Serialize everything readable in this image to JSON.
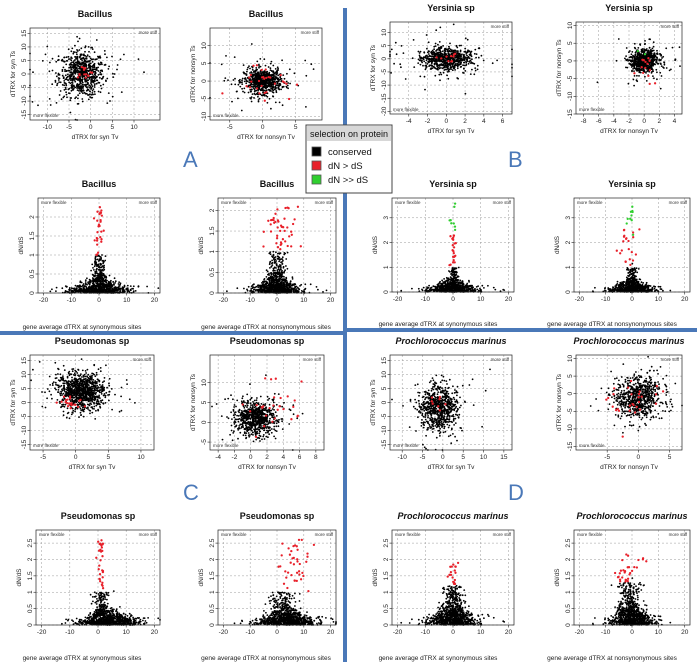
{
  "figure": {
    "quadrant_letters": [
      "A",
      "B",
      "C",
      "D"
    ],
    "legend": {
      "title": "selection on protein",
      "items": [
        {
          "label": "conserved",
          "color": "#000000"
        },
        {
          "label": "dN > dS",
          "color": "#e8202a"
        },
        {
          "label": "dN >> dS",
          "color": "#2fcf2f"
        }
      ]
    },
    "colors": {
      "divider": "#4a78b8",
      "conserved": "#000000",
      "dn_gt_ds": "#e8202a",
      "dn_gg_ds": "#2fcf2f",
      "grid": "#9a9a9a"
    }
  },
  "chart_data": [
    {
      "id": "A1",
      "type": "scatter",
      "title": "Bacillus",
      "italic": false,
      "xlabel": "dTRX for syn Tv",
      "ylabel": "dTRX for syn Ts",
      "xlim": [
        -14,
        16
      ],
      "ylim": [
        -17,
        17
      ],
      "xticks": [
        -10,
        -5,
        0,
        5,
        10
      ],
      "yticks": [
        -15,
        -10,
        -5,
        0,
        5,
        10,
        15
      ],
      "corner_top": "more stiff",
      "corner_bottom": "more flexible",
      "clouds": [
        {
          "cx": -2,
          "cy": 0,
          "sx": 2.6,
          "sy": 4.2,
          "n": 650
        },
        {
          "cx": -2,
          "cy": 0,
          "sx": 6,
          "sy": 7,
          "n": 70
        }
      ],
      "red_spots": [
        {
          "cx": -1.5,
          "cy": 1,
          "sx": 1,
          "sy": 1.2,
          "n": 14
        }
      ],
      "green_spots": []
    },
    {
      "id": "A2",
      "type": "scatter",
      "title": "Bacillus",
      "italic": false,
      "xlabel": "dTRX for nonsyn Tv",
      "ylabel": "dTRX for nonsyn Ts",
      "xlim": [
        -8,
        9
      ],
      "ylim": [
        -11,
        15
      ],
      "xticks": [
        -5,
        0,
        5
      ],
      "yticks": [
        -10,
        -5,
        0,
        5,
        10
      ],
      "corner_top": "more stiff",
      "corner_bottom": "more flexible",
      "clouds": [
        {
          "cx": 0,
          "cy": 0,
          "sx": 1.4,
          "sy": 1.7,
          "n": 650
        },
        {
          "cx": 0,
          "cy": 0,
          "sx": 3.5,
          "sy": 4,
          "n": 70
        }
      ],
      "red_spots": [
        {
          "cx": 0,
          "cy": 0.5,
          "sx": 2.4,
          "sy": 2.6,
          "n": 30
        }
      ],
      "green_spots": []
    },
    {
      "id": "A3",
      "type": "scatter",
      "title": "Bacillus",
      "italic": false,
      "xlabel": "",
      "ylabel": "dN/dS",
      "xlim": [
        -22,
        22
      ],
      "ylim": [
        0,
        2.5
      ],
      "xticks": [
        -20,
        -10,
        0,
        10,
        20
      ],
      "yticks": [
        0,
        0.5,
        1,
        1.5,
        2
      ],
      "corner_left": "more flexible",
      "corner_right": "more stiff",
      "base": {
        "n": 700,
        "sx": 5,
        "decay": 0.1
      },
      "core": {
        "n": 180,
        "cx": 0,
        "sx": 1.1,
        "ymin": 0.3,
        "ymax": 1.0
      },
      "red": {
        "n": 30,
        "cx": 0,
        "sx": 0.7,
        "ymin": 1.0,
        "ymax": 2.35
      },
      "green": {
        "n": 0
      }
    },
    {
      "id": "A4",
      "type": "scatter",
      "title": "Bacillus",
      "italic": false,
      "xlabel": "",
      "ylabel": "dN/dS",
      "xlim": [
        -22,
        22
      ],
      "ylim": [
        0,
        2.3
      ],
      "xticks": [
        -20,
        -10,
        0,
        10,
        20
      ],
      "yticks": [
        0,
        0.5,
        1,
        1.5,
        2
      ],
      "corner_left": "more flexible",
      "corner_right": "more stiff",
      "base": {
        "n": 700,
        "sx": 4,
        "decay": 0.1
      },
      "core": {
        "n": 180,
        "cx": 0,
        "sx": 1.6,
        "ymin": 0.3,
        "ymax": 1.0
      },
      "red": {
        "n": 45,
        "cx": 2,
        "sx": 3,
        "ymin": 1.0,
        "ymax": 2.1
      },
      "green": {
        "n": 0
      }
    },
    {
      "id": "B1",
      "type": "scatter",
      "title": "Yersinia sp",
      "italic": false,
      "xlabel": "dTRX for syn Tv",
      "ylabel": "dTRX for syn Ts",
      "xlim": [
        -6,
        7
      ],
      "ylim": [
        -21,
        14
      ],
      "xticks": [
        -4,
        -2,
        0,
        2,
        4,
        6
      ],
      "yticks": [
        -20,
        -15,
        -10,
        -5,
        0,
        5,
        10
      ],
      "corner_top": "more stiff",
      "corner_bottom": "more flexible",
      "clouds": [
        {
          "cx": 0,
          "cy": 0,
          "sx": 1.4,
          "sy": 2,
          "n": 650
        },
        {
          "cx": 0,
          "cy": 0,
          "sx": 3,
          "sy": 5,
          "n": 70
        }
      ],
      "red_spots": [
        {
          "cx": 0,
          "cy": 0.5,
          "sx": 0.8,
          "sy": 1,
          "n": 10
        }
      ],
      "green_spots": []
    },
    {
      "id": "B2",
      "type": "scatter",
      "title": "Yersinia sp",
      "italic": false,
      "xlabel": "dTRX for nonsyn Tv",
      "ylabel": "dTRX for nonsyn Ts",
      "xlim": [
        -9,
        5
      ],
      "ylim": [
        -15,
        11
      ],
      "xticks": [
        -8,
        -6,
        -4,
        -2,
        0,
        2,
        4
      ],
      "yticks": [
        -15,
        -10,
        -5,
        0,
        5,
        10
      ],
      "corner_top": "more stiff",
      "corner_bottom": "more flexible",
      "clouds": [
        {
          "cx": 0,
          "cy": 0,
          "sx": 0.9,
          "sy": 1.6,
          "n": 650
        },
        {
          "cx": 0,
          "cy": 0,
          "sx": 2,
          "sy": 3.5,
          "n": 70
        }
      ],
      "red_spots": [
        {
          "cx": 0,
          "cy": -1,
          "sx": 0.8,
          "sy": 2.2,
          "n": 14
        }
      ],
      "green_spots": [
        {
          "cx": -0.5,
          "cy": 3,
          "sx": 0.6,
          "sy": 0.8,
          "n": 2
        }
      ]
    },
    {
      "id": "B3",
      "type": "scatter",
      "title": "Yersinia sp",
      "italic": false,
      "xlabel": "",
      "ylabel": "dN/dS",
      "xlim": [
        -22,
        22
      ],
      "ylim": [
        0,
        3.8
      ],
      "xticks": [
        -20,
        -10,
        0,
        10,
        20
      ],
      "yticks": [
        0,
        1,
        2,
        3
      ],
      "corner_left": "more flexible",
      "corner_right": "more stiff",
      "base": {
        "n": 650,
        "sx": 4,
        "decay": 0.12
      },
      "core": {
        "n": 120,
        "cx": 0,
        "sx": 0.9,
        "ymin": 0.3,
        "ymax": 1.0
      },
      "red": {
        "n": 22,
        "cx": 0,
        "sx": 0.6,
        "ymin": 1.0,
        "ymax": 2.3
      },
      "green": {
        "n": 8,
        "cx": 0,
        "sx": 0.6,
        "ymin": 2.3,
        "ymax": 3.6
      }
    },
    {
      "id": "B4",
      "type": "scatter",
      "title": "Yersinia sp",
      "italic": false,
      "xlabel": "",
      "ylabel": "dN/dS",
      "xlim": [
        -22,
        22
      ],
      "ylim": [
        0,
        3.8
      ],
      "xticks": [
        -20,
        -10,
        0,
        10,
        20
      ],
      "yticks": [
        0,
        1,
        2,
        3
      ],
      "corner_left": "more flexible",
      "corner_right": "more stiff",
      "base": {
        "n": 650,
        "sx": 3.5,
        "decay": 0.12
      },
      "core": {
        "n": 120,
        "cx": 0,
        "sx": 1.2,
        "ymin": 0.3,
        "ymax": 1.0
      },
      "red": {
        "n": 22,
        "cx": -1,
        "sx": 2.2,
        "ymin": 1.0,
        "ymax": 2.6
      },
      "green": {
        "n": 10,
        "cx": 0,
        "sx": 1.3,
        "ymin": 2.3,
        "ymax": 3.5
      }
    },
    {
      "id": "C1",
      "type": "scatter",
      "title": "Pseudomonas sp",
      "italic": false,
      "xlabel": "dTRX for syn Tv",
      "ylabel": "dTRX for syn Ts",
      "xlim": [
        -7,
        12
      ],
      "ylim": [
        -17,
        17
      ],
      "xticks": [
        -5,
        0,
        5,
        10
      ],
      "yticks": [
        -15,
        -10,
        -5,
        0,
        5,
        10,
        15
      ],
      "corner_top": "more stiff",
      "corner_bottom": "more flexible",
      "clouds": [
        {
          "cx": 1,
          "cy": 4,
          "sx": 1.8,
          "sy": 3.2,
          "n": 900
        },
        {
          "cx": 1,
          "cy": 3,
          "sx": 3.5,
          "sy": 5.5,
          "n": 60
        }
      ],
      "red_spots": [
        {
          "cx": -1,
          "cy": 0,
          "sx": 0.9,
          "sy": 1.2,
          "n": 22
        }
      ],
      "green_spots": []
    },
    {
      "id": "C2",
      "type": "scatter",
      "title": "Pseudomonas sp",
      "italic": false,
      "xlabel": "dTRX for nonsyn Tv",
      "ylabel": "dTRX for nonsyn Ts",
      "xlim": [
        -5,
        9
      ],
      "ylim": [
        -7,
        17
      ],
      "xticks": [
        -4,
        -2,
        0,
        2,
        4,
        6,
        8
      ],
      "yticks": [
        -5,
        0,
        5,
        10
      ],
      "corner_top": "more stiff",
      "corner_bottom": "more flexible",
      "clouds": [
        {
          "cx": 0.5,
          "cy": 1,
          "sx": 1.2,
          "sy": 2,
          "n": 700
        },
        {
          "cx": 1,
          "cy": 2,
          "sx": 2.5,
          "sy": 4,
          "n": 70
        }
      ],
      "red_spots": [
        {
          "cx": 3,
          "cy": 5,
          "sx": 1.8,
          "sy": 3.5,
          "n": 28
        }
      ],
      "green_spots": []
    },
    {
      "id": "C3",
      "type": "scatter",
      "title": "Pseudomonas sp",
      "italic": false,
      "xlabel": "",
      "ylabel": "dN/dS",
      "xlim": [
        -22,
        22
      ],
      "ylim": [
        0,
        2.9
      ],
      "xticks": [
        -20,
        -10,
        0,
        10,
        20
      ],
      "yticks": [
        0,
        0.5,
        1,
        1.5,
        2,
        2.5
      ],
      "corner_left": "more flexible",
      "corner_right": "more stiff",
      "base": {
        "n": 800,
        "sx": 5,
        "decay": 0.12,
        "shift": 4
      },
      "core": {
        "n": 180,
        "cx": 1,
        "sx": 1.3,
        "ymin": 0.3,
        "ymax": 1.0
      },
      "red": {
        "n": 30,
        "cx": 1,
        "sx": 0.7,
        "ymin": 1.1,
        "ymax": 2.8
      },
      "green": {
        "n": 0
      }
    },
    {
      "id": "C4",
      "type": "scatter",
      "title": "Pseudomonas sp",
      "italic": false,
      "xlabel": "",
      "ylabel": "dN/dS",
      "xlim": [
        -22,
        22
      ],
      "ylim": [
        0,
        2.9
      ],
      "xticks": [
        -20,
        -10,
        0,
        10,
        20
      ],
      "yticks": [
        0,
        0.5,
        1,
        1.5,
        2,
        2.5
      ],
      "corner_left": "more flexible",
      "corner_right": "more stiff",
      "base": {
        "n": 800,
        "sx": 5,
        "decay": 0.12,
        "shift": 4
      },
      "core": {
        "n": 180,
        "cx": 2,
        "sx": 2.5,
        "ymin": 0.3,
        "ymax": 1.0
      },
      "red": {
        "n": 40,
        "cx": 7,
        "sx": 3,
        "ymin": 1.0,
        "ymax": 2.6
      },
      "green": {
        "n": 0
      }
    },
    {
      "id": "D1",
      "type": "scatter",
      "title": "Prochlorococcus marinus",
      "italic": true,
      "xlabel": "dTRX for syn Tv",
      "ylabel": "dTRX for syn Ts",
      "xlim": [
        -13,
        17
      ],
      "ylim": [
        -17,
        17
      ],
      "xticks": [
        -10,
        -5,
        0,
        5,
        10,
        15
      ],
      "yticks": [
        -15,
        -10,
        -5,
        0,
        5,
        10,
        15
      ],
      "corner_top": "more stiff",
      "corner_bottom": "more flexible",
      "clouds": [
        {
          "cx": -1,
          "cy": -2,
          "sx": 2.4,
          "sy": 4,
          "n": 650
        },
        {
          "cx": -1,
          "cy": -2,
          "sx": 5,
          "sy": 7,
          "n": 60
        }
      ],
      "red_spots": [
        {
          "cx": -1,
          "cy": 0,
          "sx": 1,
          "sy": 1.4,
          "n": 8
        }
      ],
      "green_spots": []
    },
    {
      "id": "D2",
      "type": "scatter",
      "title": "Prochlorococcus marinus",
      "italic": true,
      "xlabel": "dTRX for nonsyn Tv",
      "ylabel": "dTRX for nonsyn Ts",
      "xlim": [
        -10,
        7
      ],
      "ylim": [
        -16,
        11
      ],
      "xticks": [
        -5,
        0,
        5
      ],
      "yticks": [
        -15,
        -10,
        -5,
        0,
        5,
        10
      ],
      "corner_top": "more stiff",
      "corner_bottom": "more flexible",
      "clouds": [
        {
          "cx": 0,
          "cy": -1,
          "sx": 1.8,
          "sy": 3,
          "n": 650
        },
        {
          "cx": 0,
          "cy": -1,
          "sx": 3.5,
          "sy": 5,
          "n": 60
        }
      ],
      "red_spots": [
        {
          "cx": -0.5,
          "cy": -2,
          "sx": 1.8,
          "sy": 3,
          "n": 28
        }
      ],
      "green_spots": []
    },
    {
      "id": "D3",
      "type": "scatter",
      "title": "Prochlorococcus marinus",
      "italic": true,
      "xlabel": "",
      "ylabel": "dN/dS",
      "xlim": [
        -22,
        22
      ],
      "ylim": [
        0,
        2.9
      ],
      "xticks": [
        -20,
        -10,
        0,
        10,
        20
      ],
      "yticks": [
        0,
        0.5,
        1,
        1.5,
        2,
        2.5
      ],
      "corner_left": "more flexible",
      "corner_right": "more stiff",
      "base": {
        "n": 700,
        "sx": 4,
        "decay": 0.15
      },
      "core": {
        "n": 250,
        "cx": 0,
        "sx": 2,
        "ymin": 0.3,
        "ymax": 1.2
      },
      "red": {
        "n": 18,
        "cx": 0,
        "sx": 0.8,
        "ymin": 1.2,
        "ymax": 1.9
      },
      "green": {
        "n": 0
      }
    },
    {
      "id": "D4",
      "type": "scatter",
      "title": "Prochlorococcus marinus",
      "italic": true,
      "xlabel": "",
      "ylabel": "dN/dS",
      "xlim": [
        -22,
        22
      ],
      "ylim": [
        0,
        2.9
      ],
      "xticks": [
        -20,
        -10,
        0,
        10,
        20
      ],
      "yticks": [
        0,
        0.5,
        1,
        1.5,
        2,
        2.5
      ],
      "corner_left": "more flexible",
      "corner_right": "more stiff",
      "base": {
        "n": 700,
        "sx": 3.5,
        "decay": 0.15
      },
      "core": {
        "n": 250,
        "cx": -1,
        "sx": 2.5,
        "ymin": 0.3,
        "ymax": 1.3
      },
      "red": {
        "n": 30,
        "cx": -2,
        "sx": 2.5,
        "ymin": 1.3,
        "ymax": 2.2
      },
      "green": {
        "n": 0
      }
    }
  ],
  "shared_xlabels": {
    "A": "gene average dTRX at synonymous sites",
    "A2": "gene average dTRX at nonsynonymous sites",
    "B": "gene average dTRX at synonymous sites",
    "B2": "gene average dTRX at nonsynonymous sites",
    "C": "gene average dTRX at synonymous sites",
    "C2": "gene average dTRX at nonsynonymous sites",
    "D": "gene average dTRX at synonymous sites",
    "D2": "gene average dTRX at nonsynonymous sites"
  }
}
